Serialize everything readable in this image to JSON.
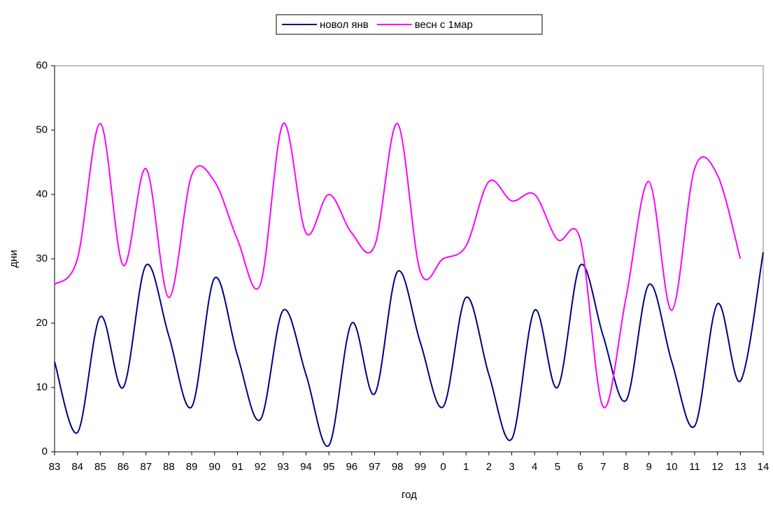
{
  "chart_data": {
    "type": "line",
    "xlabel": "год",
    "ylabel": "дни",
    "categories": [
      "83",
      "84",
      "85",
      "86",
      "87",
      "88",
      "89",
      "90",
      "91",
      "92",
      "93",
      "94",
      "95",
      "96",
      "97",
      "98",
      "99",
      "0",
      "1",
      "2",
      "3",
      "4",
      "5",
      "6",
      "7",
      "8",
      "9",
      "10",
      "11",
      "12",
      "13",
      "14"
    ],
    "series": [
      {
        "name": "новол янв",
        "color": "#000080",
        "values": [
          14,
          3,
          21,
          10,
          29,
          18,
          7,
          27,
          15,
          5,
          22,
          12,
          1,
          20,
          9,
          28,
          17,
          7,
          24,
          12,
          2,
          22,
          10,
          29,
          18,
          8,
          26,
          14,
          4,
          23,
          11,
          31
        ]
      },
      {
        "name": "весн с 1мар",
        "color": "#ff00ff",
        "values": [
          26,
          30,
          51,
          29,
          44,
          24,
          43,
          42,
          33,
          26,
          51,
          34,
          40,
          34,
          32,
          51,
          28,
          30,
          32,
          42,
          39,
          40,
          33,
          33,
          7,
          24,
          42,
          22,
          44,
          43,
          30,
          null
        ]
      }
    ],
    "ylim": [
      0,
      60
    ],
    "yticks": [
      0,
      10,
      20,
      30,
      40,
      50,
      60
    ],
    "legend": "top",
    "smooth": true
  }
}
